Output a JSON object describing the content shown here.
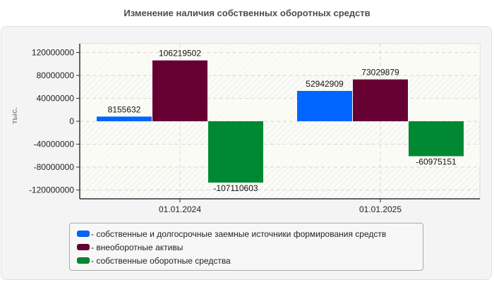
{
  "title": "Изменение наличия собственных оборотных средств",
  "y_unit_label": "тыс.",
  "colors": {
    "series1": "#0066ff",
    "series2": "#660033",
    "series3": "#008833"
  },
  "legend": [
    {
      "label": "- собственные и долгосрочные заемные источники формирования средств",
      "color": "#0066ff"
    },
    {
      "label": "- внеоборотные активы",
      "color": "#660033"
    },
    {
      "label": "- собственные оборотные средства",
      "color": "#008833"
    }
  ],
  "chart_data": {
    "type": "bar",
    "title": "Изменение наличия собственных оборотных средств",
    "xlabel": "",
    "ylabel": "тыс.",
    "categories": [
      "01.01.2024",
      "01.01.2025"
    ],
    "series": [
      {
        "name": "собственные и долгосрочные заемные источники формирования средств",
        "color": "#0066ff",
        "values": [
          8155632,
          52942909
        ]
      },
      {
        "name": "внеоборотные активы",
        "color": "#660033",
        "values": [
          106219502,
          73029879
        ]
      },
      {
        "name": "собственные оборотные средства",
        "color": "#008833",
        "values": [
          -107110603,
          -60975151
        ]
      }
    ],
    "data_labels": [
      [
        "8155632",
        "52942909"
      ],
      [
        "106219502",
        "73029879"
      ],
      [
        "-107110603",
        "-60975151"
      ]
    ],
    "yticks": [
      120000000,
      80000000,
      40000000,
      0,
      -40000000,
      -80000000,
      -120000000
    ],
    "ytick_labels": [
      "120000000",
      "80000000",
      "40000000",
      "0",
      "-40000000",
      "-80000000",
      "-120000000"
    ],
    "ylim": [
      -135000000,
      135000000
    ],
    "grid": true,
    "legend_position": "bottom"
  }
}
